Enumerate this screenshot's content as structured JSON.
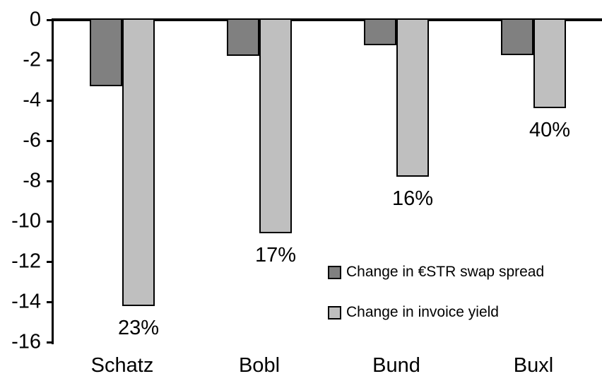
{
  "chart_data": {
    "type": "bar",
    "title": "",
    "categories": [
      "Schatz",
      "Bobl",
      "Bund",
      "Buxl"
    ],
    "series": [
      {
        "name": "Change in €STR swap spread",
        "color": "#808080",
        "values": [
          -3.3,
          -1.8,
          -1.25,
          -1.75
        ]
      },
      {
        "name": "Change in invoice yield",
        "color": "#BFBFBF",
        "values": [
          -14.2,
          -10.6,
          -7.8,
          -4.4
        ]
      }
    ],
    "bar_labels": [
      "23%",
      "17%",
      "16%",
      "40%"
    ],
    "yticks": [
      0,
      -2,
      -4,
      -6,
      -8,
      -10,
      -12,
      -14,
      -16
    ],
    "ylim": [
      -16,
      0
    ],
    "grid": false,
    "legend_position": "center-right",
    "bar_border_color": "#000000",
    "axis_color": "#000000",
    "background": "#FFFFFF"
  }
}
